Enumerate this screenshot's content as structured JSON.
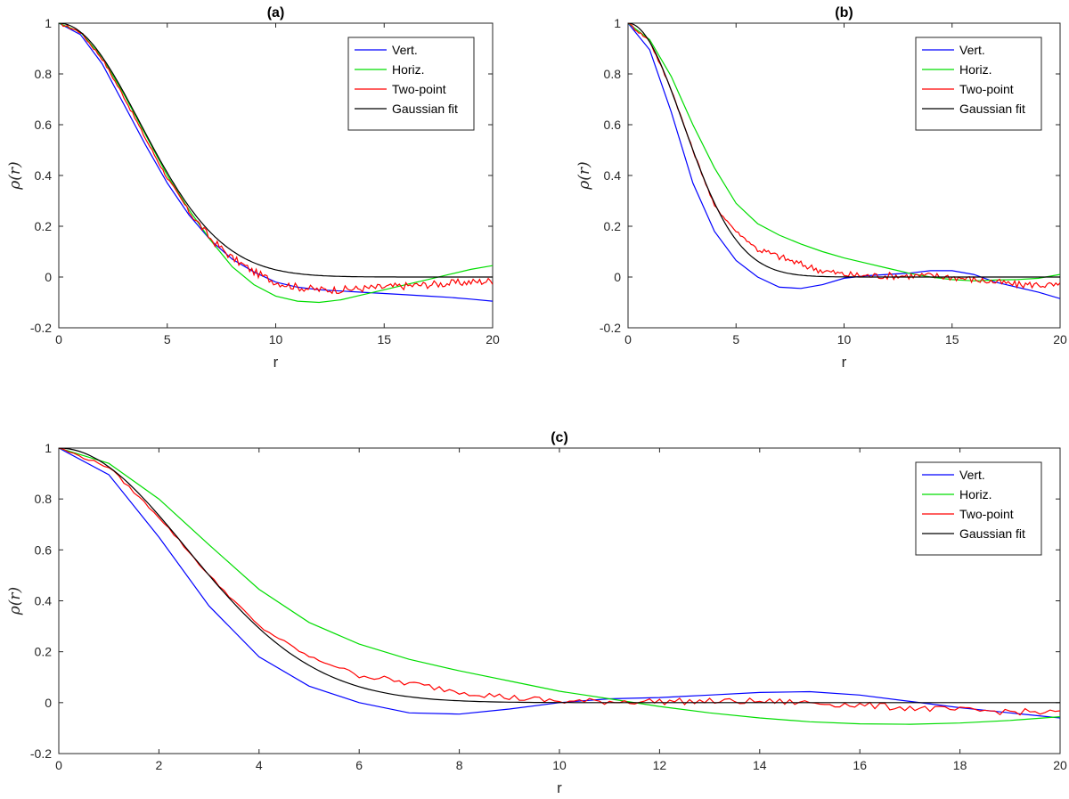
{
  "chart_data": [
    {
      "type": "line",
      "title": "(a)",
      "xlabel": "r",
      "ylabel": "ρ(r)",
      "xlim": [
        0,
        20
      ],
      "ylim": [
        -0.2,
        1
      ],
      "xticks": [
        "0",
        "5",
        "10",
        "15",
        "20"
      ],
      "yticks": [
        "-0.2",
        "0",
        "0.2",
        "0.4",
        "0.6",
        "0.8",
        "1"
      ],
      "legend_position": "top-right",
      "series": [
        {
          "name": "Vert.",
          "color": "#0000ff",
          "x": [
            0,
            1,
            2,
            3,
            4,
            5,
            6,
            7,
            8,
            9,
            10,
            11,
            12,
            13,
            14,
            15,
            16,
            17,
            18,
            19,
            20
          ],
          "y": [
            1,
            0.955,
            0.84,
            0.68,
            0.52,
            0.37,
            0.245,
            0.145,
            0.07,
            0.02,
            -0.02,
            -0.04,
            -0.05,
            -0.055,
            -0.06,
            -0.065,
            -0.07,
            -0.075,
            -0.08,
            -0.087,
            -0.095
          ]
        },
        {
          "name": "Horiz.",
          "color": "#00dd00",
          "x": [
            0,
            1,
            2,
            3,
            4,
            5,
            6,
            7,
            8,
            9,
            10,
            11,
            12,
            13,
            14,
            15,
            16,
            17,
            18,
            19,
            20
          ],
          "y": [
            1,
            0.965,
            0.865,
            0.72,
            0.56,
            0.4,
            0.265,
            0.145,
            0.04,
            -0.03,
            -0.075,
            -0.095,
            -0.1,
            -0.09,
            -0.07,
            -0.05,
            -0.03,
            -0.01,
            0.01,
            0.03,
            0.045
          ]
        },
        {
          "name": "Two-point",
          "color": "#ff0000",
          "noise": 0.015,
          "x": [
            0,
            1,
            2,
            3,
            4,
            5,
            6,
            7,
            8,
            9,
            10,
            11,
            12,
            13,
            14,
            15,
            16,
            17,
            18,
            19,
            20
          ],
          "y": [
            1,
            0.965,
            0.86,
            0.71,
            0.545,
            0.39,
            0.26,
            0.15,
            0.075,
            0.02,
            -0.02,
            -0.04,
            -0.05,
            -0.05,
            -0.045,
            -0.04,
            -0.035,
            -0.03,
            -0.025,
            -0.02,
            -0.015
          ]
        },
        {
          "name": "Gaussian fit",
          "color": "#000000",
          "sigma": 3.75,
          "x": [
            0,
            20
          ]
        }
      ]
    },
    {
      "type": "line",
      "title": "(b)",
      "xlabel": "r",
      "ylabel": "ρ(r)",
      "xlim": [
        0,
        20
      ],
      "ylim": [
        -0.2,
        1
      ],
      "xticks": [
        "0",
        "5",
        "10",
        "15",
        "20"
      ],
      "yticks": [
        "-0.2",
        "0",
        "0.2",
        "0.4",
        "0.6",
        "0.8",
        "1"
      ],
      "legend_position": "top-right",
      "series": [
        {
          "name": "Vert.",
          "color": "#0000ff",
          "x": [
            0,
            1,
            2,
            3,
            4,
            5,
            6,
            7,
            8,
            9,
            10,
            11,
            12,
            13,
            14,
            15,
            16,
            17,
            18,
            19,
            20
          ],
          "y": [
            1,
            0.895,
            0.65,
            0.37,
            0.18,
            0.065,
            0,
            -0.04,
            -0.045,
            -0.03,
            -0.005,
            0.005,
            0.01,
            0.015,
            0.025,
            0.025,
            0.01,
            -0.02,
            -0.04,
            -0.06,
            -0.085
          ]
        },
        {
          "name": "Horiz.",
          "color": "#00dd00",
          "x": [
            0,
            1,
            2,
            3,
            4,
            5,
            6,
            7,
            8,
            9,
            10,
            11,
            12,
            13,
            14,
            15,
            16,
            17,
            18,
            19,
            20
          ],
          "y": [
            1,
            0.935,
            0.79,
            0.6,
            0.43,
            0.29,
            0.21,
            0.165,
            0.13,
            0.1,
            0.075,
            0.055,
            0.035,
            0.015,
            0,
            -0.01,
            -0.015,
            -0.012,
            -0.01,
            -0.005,
            0.01
          ]
        },
        {
          "name": "Two-point",
          "color": "#ff0000",
          "noise": 0.014,
          "x": [
            0,
            1,
            2,
            3,
            4,
            5,
            6,
            7,
            8,
            9,
            10,
            11,
            12,
            13,
            14,
            15,
            16,
            17,
            18,
            19,
            20
          ],
          "y": [
            1,
            0.93,
            0.74,
            0.5,
            0.28,
            0.18,
            0.11,
            0.08,
            0.05,
            0.025,
            0.01,
            0.005,
            0.005,
            0.005,
            0.005,
            0,
            -0.01,
            -0.02,
            -0.03,
            -0.03,
            -0.035
          ]
        },
        {
          "name": "Gaussian fit",
          "color": "#000000",
          "sigma": 2.55,
          "x": [
            0,
            20
          ]
        }
      ]
    },
    {
      "type": "line",
      "title": "(c)",
      "xlabel": "r",
      "ylabel": "ρ(r)",
      "xlim": [
        0,
        20
      ],
      "ylim": [
        -0.2,
        1
      ],
      "xticks": [
        "0",
        "2",
        "4",
        "6",
        "8",
        "10",
        "12",
        "14",
        "16",
        "18",
        "20"
      ],
      "yticks": [
        "-0.2",
        "0",
        "0.2",
        "0.4",
        "0.6",
        "0.8",
        "1"
      ],
      "legend_position": "top-right",
      "series": [
        {
          "name": "Vert.",
          "color": "#0000ff",
          "x": [
            0,
            1,
            2,
            3,
            4,
            5,
            6,
            7,
            8,
            9,
            10,
            11,
            12,
            13,
            14,
            15,
            16,
            17,
            18,
            19,
            20
          ],
          "y": [
            1,
            0.895,
            0.65,
            0.38,
            0.18,
            0.065,
            0,
            -0.04,
            -0.045,
            -0.025,
            0,
            0.015,
            0.02,
            0.03,
            0.04,
            0.043,
            0.03,
            0.005,
            -0.02,
            -0.04,
            -0.06
          ]
        },
        {
          "name": "Horiz.",
          "color": "#00dd00",
          "x": [
            0,
            1,
            2,
            3,
            4,
            5,
            6,
            7,
            8,
            9,
            10,
            11,
            12,
            13,
            14,
            15,
            16,
            17,
            18,
            19,
            20
          ],
          "y": [
            1,
            0.94,
            0.8,
            0.62,
            0.445,
            0.315,
            0.23,
            0.17,
            0.125,
            0.085,
            0.045,
            0.015,
            -0.015,
            -0.04,
            -0.06,
            -0.075,
            -0.083,
            -0.085,
            -0.08,
            -0.07,
            -0.055
          ]
        },
        {
          "name": "Two-point",
          "color": "#ff0000",
          "noise": 0.013,
          "x": [
            0,
            1,
            2,
            3,
            4,
            5,
            6,
            7,
            8,
            9,
            10,
            11,
            12,
            13,
            14,
            15,
            16,
            17,
            18,
            19,
            20
          ],
          "y": [
            1,
            0.925,
            0.73,
            0.5,
            0.3,
            0.18,
            0.11,
            0.075,
            0.045,
            0.02,
            0.005,
            0.005,
            0.005,
            0.005,
            0.005,
            0,
            -0.01,
            -0.02,
            -0.03,
            -0.035,
            -0.04
          ]
        },
        {
          "name": "Gaussian fit",
          "color": "#000000",
          "sigma": 2.55,
          "x": [
            0,
            20
          ]
        }
      ]
    }
  ]
}
